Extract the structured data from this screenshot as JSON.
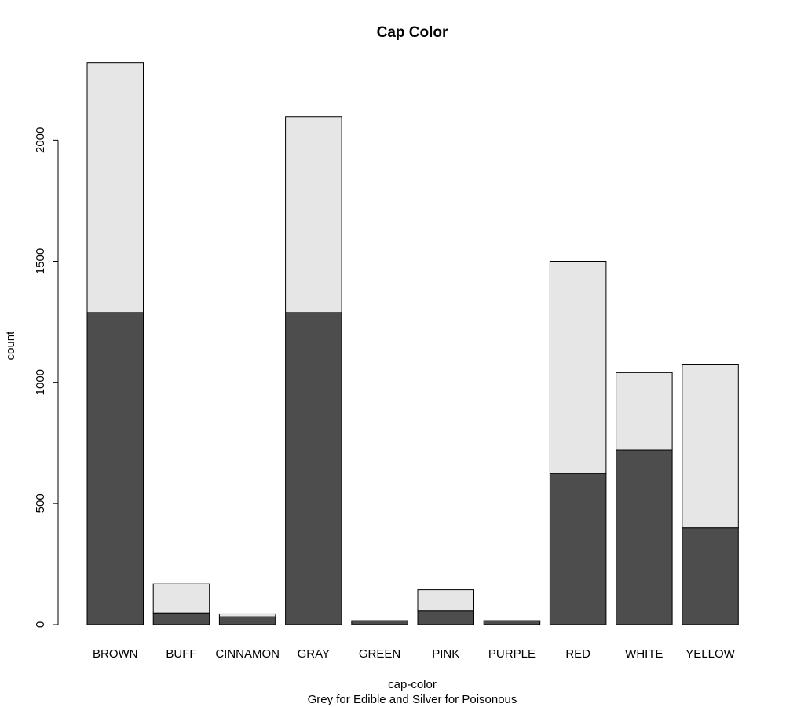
{
  "chart_data": {
    "type": "bar",
    "stacked": true,
    "title": "Cap Color",
    "xlabel": "cap-color",
    "subtitle": "Grey for Edible and Silver for Poisonous",
    "ylabel": "count",
    "categories": [
      "BROWN",
      "BUFF",
      "CINNAMON",
      "GRAY",
      "GREEN",
      "PINK",
      "PURPLE",
      "RED",
      "WHITE",
      "YELLOW"
    ],
    "series": [
      {
        "color": "#4d4d4d",
        "values": [
          1288,
          48,
          32,
          1288,
          16,
          56,
          16,
          624,
          720,
          400
        ]
      },
      {
        "color": "#e6e6e6",
        "values": [
          1032,
          120,
          12,
          808,
          0,
          88,
          0,
          876,
          320,
          672
        ]
      }
    ],
    "ylim": [
      0,
      2320
    ],
    "yticks": [
      "0",
      "500",
      "1000",
      "1500",
      "2000"
    ],
    "ytick_values": [
      0,
      500,
      1000,
      1500,
      2000
    ],
    "grid": false,
    "legend": "none"
  }
}
